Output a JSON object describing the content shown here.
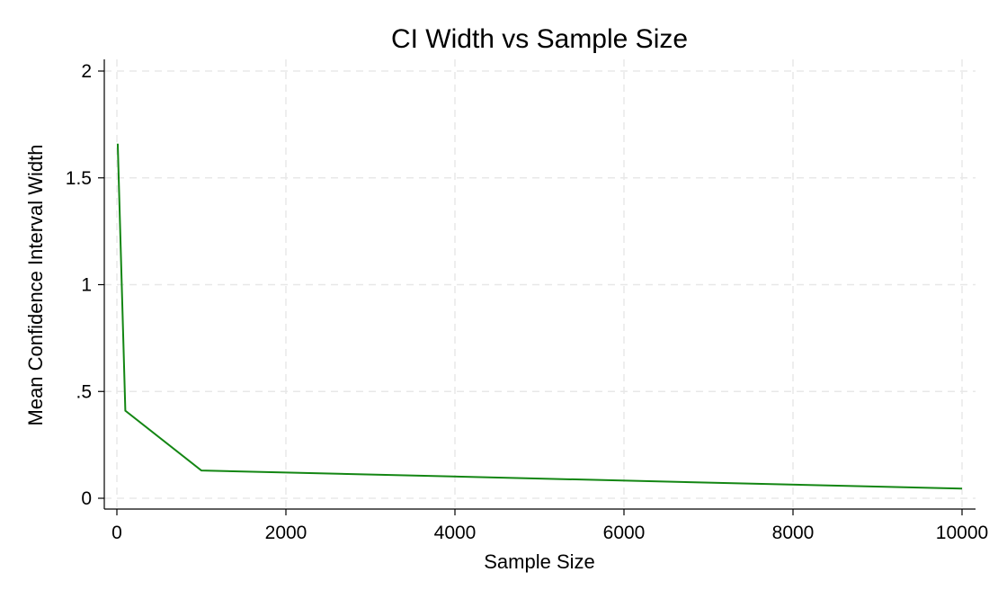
{
  "chart_data": {
    "type": "line",
    "title": "CI Width vs Sample Size",
    "xlabel": "Sample Size",
    "ylabel": "Mean Confidence Interval Width",
    "xlim": [
      0,
      10000
    ],
    "ylim": [
      0,
      2
    ],
    "xticks": [
      0,
      2000,
      4000,
      6000,
      8000,
      10000
    ],
    "xtick_labels": [
      "0",
      "2000",
      "4000",
      "6000",
      "8000",
      "10000"
    ],
    "yticks": [
      0,
      0.5,
      1,
      1.5,
      2
    ],
    "ytick_labels": [
      "0",
      ".5",
      "1",
      "1.5",
      "2"
    ],
    "grid": true,
    "series": [
      {
        "color": "#138613",
        "x": [
          10,
          100,
          1000,
          10000
        ],
        "y": [
          1.66,
          0.41,
          0.13,
          0.045
        ]
      }
    ]
  }
}
